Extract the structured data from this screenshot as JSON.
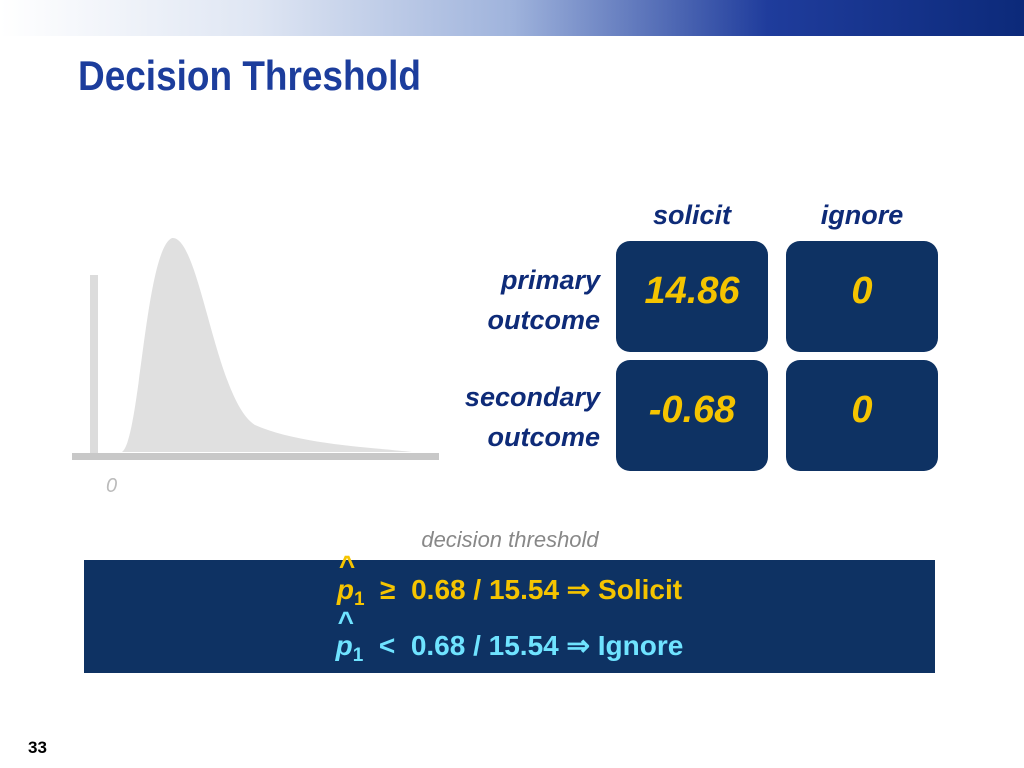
{
  "title": "Decision Threshold",
  "matrix": {
    "columns": [
      "solicit",
      "ignore"
    ],
    "rows": [
      {
        "label": [
          "primary",
          "outcome"
        ],
        "values": [
          14.86,
          0
        ]
      },
      {
        "label": [
          "secondary",
          "outcome"
        ],
        "values": [
          -0.68,
          0
        ]
      }
    ]
  },
  "distribution": {
    "axis_label": "0"
  },
  "threshold_caption": "decision threshold",
  "rules": [
    {
      "hat": "^",
      "symbol": "p",
      "subscript": "1",
      "relation": "≥",
      "expression": "0.68 / 15.54",
      "arrow": "⇒",
      "action": "Solicit"
    },
    {
      "hat": "^",
      "symbol": "p",
      "subscript": "1",
      "relation": "<",
      "expression": "0.68 / 15.54",
      "arrow": "⇒",
      "action": "Ignore"
    }
  ],
  "slide_number": "33"
}
